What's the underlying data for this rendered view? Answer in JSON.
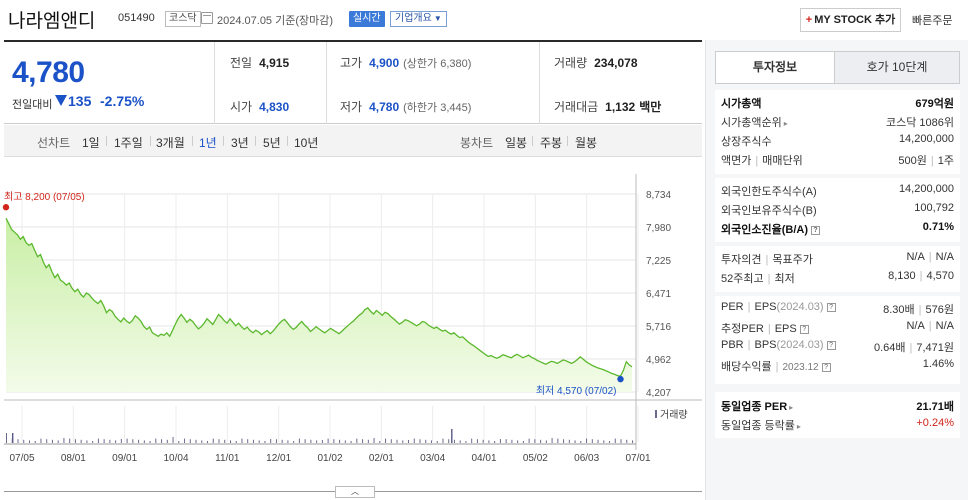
{
  "header": {
    "name": "나라엠앤디",
    "code": "051490",
    "market": "코스닥",
    "date": "2024.07.05",
    "basis": "기준(장마감)",
    "live_label": "실시간",
    "overview_label": "기업개요",
    "mystock_label": "MY STOCK 추가",
    "quick_order_label": "빠른주문"
  },
  "quote": {
    "price": "4,780",
    "change_label": "전일대비",
    "change_value": "135",
    "change_pct": "-2.75%",
    "prev": {
      "label": "전일",
      "value": "4,915"
    },
    "open": {
      "label": "시가",
      "value": "4,830"
    },
    "high": {
      "label": "고가",
      "value": "4,900",
      "sub": "(상한가 6,380)"
    },
    "low": {
      "label": "저가",
      "value": "4,780",
      "sub": "(하한가 3,445)"
    },
    "volume": {
      "label": "거래량",
      "value": "234,078"
    },
    "amount": {
      "label": "거래대금",
      "value": "1,132",
      "unit": "백만"
    }
  },
  "toolbar": {
    "line_label": "선차트",
    "periods": [
      "1일",
      "1주일",
      "3개월",
      "1년",
      "3년",
      "5년",
      "10년"
    ],
    "selected_period": "1년",
    "candle_label": "봉차트",
    "candles": [
      "일봉",
      "주봉",
      "월봉"
    ]
  },
  "chart_data": {
    "type": "area",
    "yticks": [
      "8,734",
      "7,980",
      "7,225",
      "6,471",
      "5,716",
      "4,962",
      "4,207"
    ],
    "ylim": [
      4207,
      8734
    ],
    "xticks": [
      "07/05",
      "08/01",
      "09/01",
      "10/04",
      "11/01",
      "12/01",
      "01/02",
      "02/01",
      "03/04",
      "04/01",
      "05/02",
      "06/03",
      "07/01"
    ],
    "high_label": "최고 8,200 (07/05)",
    "low_label": "최저 4,570 (07/02)",
    "volume_label": "거래량",
    "values": [
      8180,
      8050,
      7920,
      7860,
      7800,
      7700,
      7760,
      7620,
      7560,
      7600,
      7450,
      7300,
      7350,
      7180,
      7050,
      7120,
      6960,
      6820,
      6900,
      6760,
      6720,
      6650,
      6700,
      6580,
      6500,
      6560,
      6440,
      6380,
      6470,
      6430,
      6350,
      6280,
      6230,
      6300,
      6180,
      6020,
      6090,
      6050,
      5940,
      5870,
      5810,
      5900,
      5830,
      5780,
      5840,
      5950,
      5900,
      5820,
      5710,
      5640,
      5690,
      5560,
      5520,
      5480,
      5530,
      5500,
      5560,
      5480,
      5620,
      5760,
      5890,
      5980,
      5900,
      5800,
      5870,
      5820,
      5730,
      5650,
      5700,
      5780,
      5880,
      5820,
      5750,
      5860,
      5980,
      5920,
      5840,
      5780,
      5880,
      5800,
      5720,
      5780,
      5700,
      5640,
      5690,
      5610,
      5560,
      5620,
      5580,
      5520,
      5570,
      5610,
      5540,
      5600,
      5680,
      5760,
      5830,
      5870,
      5790,
      5700,
      5640,
      5680,
      5760,
      5820,
      5740,
      5680,
      5590,
      5640,
      5700,
      5650,
      5600,
      5560,
      5610,
      5660,
      5620,
      5580,
      5540,
      5600,
      5660,
      5720,
      5780,
      5830,
      5900,
      5960,
      6010,
      6090,
      6130,
      6050,
      5990,
      6070,
      6020,
      5960,
      6030,
      6000,
      5930,
      5880,
      5820,
      5760,
      5800,
      5860,
      5840,
      5800,
      5760,
      5720,
      5760,
      5820,
      5800,
      5740,
      5700,
      5660,
      5690,
      5640,
      5600,
      5620,
      5570,
      5530,
      5560,
      5500,
      5450,
      5470,
      5410,
      5350,
      5300,
      5260,
      5210,
      5160,
      5110,
      5060,
      5020,
      5040,
      5000,
      4980,
      5010,
      5060,
      5040,
      5010,
      4990,
      5040,
      5070,
      5030,
      4990,
      5020,
      5050,
      5000,
      4970,
      4930,
      4900,
      4870,
      4840,
      4880,
      4910,
      4890,
      4860,
      4900,
      4940,
      4920,
      4890,
      4860,
      4900,
      4950,
      5010,
      4960,
      4900,
      4860,
      4820,
      4790,
      4760,
      4740,
      4720,
      4690,
      4660,
      4630,
      4610,
      4580,
      4570,
      4700,
      4900,
      4830,
      4780
    ]
  },
  "side": {
    "tabs": [
      "투자정보",
      "호가 10단계"
    ],
    "market_cap": {
      "label": "시가총액",
      "value": "679억원"
    },
    "cap_rank": {
      "label": "시가총액순위",
      "value": "코스닥 1086위"
    },
    "shares": {
      "label": "상장주식수",
      "value": "14,200,000"
    },
    "par": {
      "label": "액면가",
      "label2": "매매단위",
      "value": "500원",
      "value2": "1주"
    },
    "foreign_limit": {
      "label": "외국인한도주식수(A)",
      "value": "14,200,000"
    },
    "foreign_hold": {
      "label": "외국인보유주식수(B)",
      "value": "100,792"
    },
    "foreign_ratio": {
      "label": "외국인소진율(B/A)",
      "value": "0.71%"
    },
    "opinion": {
      "label": "투자의견",
      "label2": "목표주가",
      "value": "N/A",
      "value2": "N/A"
    },
    "week52": {
      "label": "52주최고",
      "label2": "최저",
      "value": "8,130",
      "value2": "4,570"
    },
    "per": {
      "label": "PER",
      "label2": "EPS",
      "period": "(2024.03)",
      "value": "8.30배",
      "value2": "576원"
    },
    "est_per": {
      "label": "추정PER",
      "label2": "EPS",
      "value": "N/A",
      "value2": "N/A"
    },
    "pbr": {
      "label": "PBR",
      "label2": "BPS",
      "period": "(2024.03)",
      "value": "0.64배",
      "value2": "7,471원"
    },
    "dividend": {
      "label": "배당수익률",
      "period": "2023.12",
      "value": "1.46%"
    },
    "sector_per": {
      "label": "동일업종 PER",
      "value": "21.71배"
    },
    "sector_rate": {
      "label": "동일업종 등락률",
      "value": "+0.24%"
    }
  }
}
